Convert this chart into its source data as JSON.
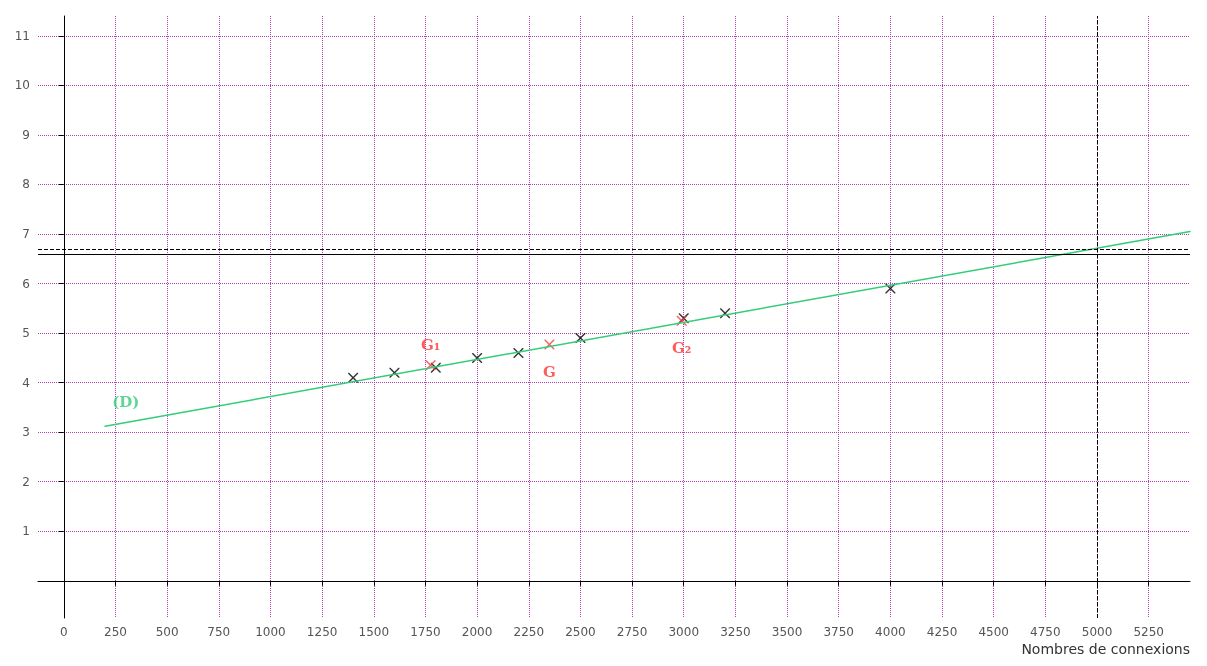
{
  "chart_data": {
    "type": "scatter",
    "xlabel": "Nombres de connexions",
    "xlim": [
      -125,
      5450
    ],
    "ylim": [
      -0.75,
      11.4
    ],
    "xticks": [
      0,
      250,
      500,
      750,
      1000,
      1250,
      1500,
      1750,
      2000,
      2250,
      2500,
      2750,
      3000,
      3250,
      3500,
      3750,
      4000,
      4250,
      4500,
      4750,
      5000,
      5250
    ],
    "yticks": [
      1,
      2,
      3,
      4,
      5,
      6,
      7,
      8,
      9,
      10,
      11
    ],
    "grid": true,
    "marker": "cross",
    "series": [
      {
        "color": "#000000",
        "x": [
          1400,
          1600,
          1800,
          2000,
          2200,
          2500,
          3000,
          3200,
          4000
        ],
        "values": [
          4.1,
          4.2,
          4.3,
          4.5,
          4.6,
          4.9,
          5.3,
          5.4,
          5.9
        ]
      },
      {
        "color": "#ff3333",
        "x": [
          1775,
          2350,
          2990
        ],
        "values": [
          4.35,
          4.77,
          5.25
        ]
      },
      {
        "type": "line",
        "color": "#33cc77",
        "marker": "none",
        "x": [
          200,
          5450
        ],
        "values": [
          3.12,
          7.05
        ]
      }
    ],
    "ref_lines": [
      {
        "axis": "y",
        "value": 6.7,
        "color": "#000000",
        "line_style": "dashed"
      },
      {
        "axis": "y",
        "value": 6.6,
        "color": "#000000",
        "line_style": "solid"
      },
      {
        "axis": "x",
        "value": 5000,
        "color": "#000000",
        "line_style": "dashed"
      }
    ],
    "annotations": [
      {
        "text": "G₁",
        "x": 1775,
        "y": 4.35
      },
      {
        "text": "G",
        "x": 2350,
        "y": 4.77
      },
      {
        "text": "G₂",
        "x": 2990,
        "y": 5.25
      },
      {
        "text": "(D)",
        "x": 300,
        "y": 3.2
      }
    ]
  }
}
